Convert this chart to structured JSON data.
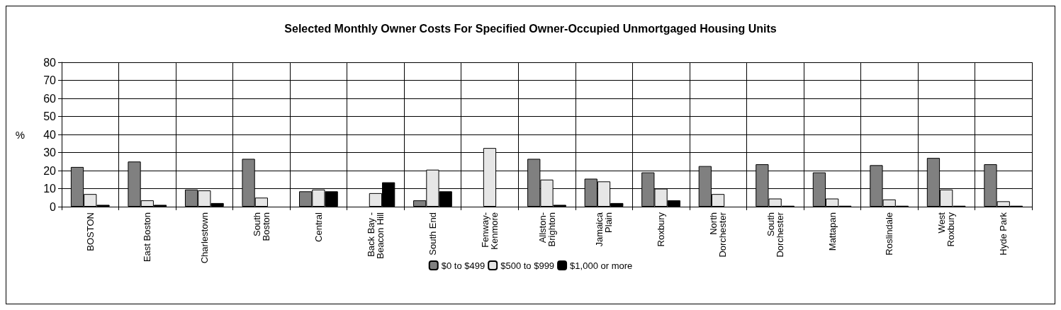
{
  "chart_data": {
    "type": "bar",
    "title": "Selected Monthly Owner Costs For Specified Owner-Occupied Unmortgaged Housing Units",
    "ylabel": "%",
    "categories": [
      "BOSTON",
      "East Boston",
      "Charlestown",
      "South\nBoston",
      "Central",
      "Back Bay -\nBeacon Hill",
      "South End",
      "Fenway-\nKenmore",
      "Allston-\nBrighton",
      "Jamaica\nPlain",
      "Roxbury",
      "North\nDorchester",
      "South\nDorchester",
      "Mattapan",
      "Roslindale",
      "West\nRoxbury",
      "Hyde Park"
    ],
    "series": [
      {
        "name": "$0 to $499",
        "color": "#808080",
        "values": [
          22,
          25,
          9.5,
          26.5,
          8.5,
          0,
          3.5,
          0,
          26.5,
          15.5,
          19,
          22.5,
          23.5,
          19,
          23,
          27,
          23.5
        ]
      },
      {
        "name": "$500 to $999",
        "color": "#e6e6e6",
        "values": [
          7,
          3.5,
          9,
          5,
          9.5,
          7.5,
          20.5,
          32.5,
          15,
          14,
          10,
          7,
          4.5,
          4.5,
          4,
          9.5,
          3
        ]
      },
      {
        "name": "$1,000 or more",
        "color": "#000000",
        "values": [
          1,
          1,
          2,
          0,
          8.5,
          13.5,
          8.5,
          0,
          1,
          2,
          3.5,
          0,
          0.5,
          0.5,
          0.5,
          0.5,
          0.5
        ]
      }
    ],
    "ylim": [
      0,
      80
    ],
    "yticks": [
      0,
      10,
      20,
      30,
      40,
      50,
      60,
      70,
      80
    ],
    "grid": true,
    "legend": "bottom"
  }
}
